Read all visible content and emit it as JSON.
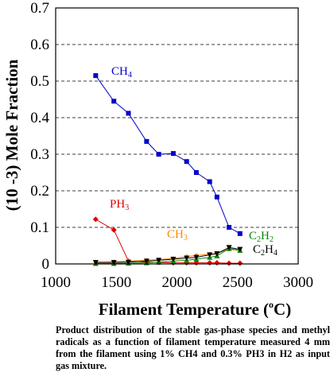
{
  "chart_data": {
    "type": "line",
    "xlabel_main": "Filament Temperature (",
    "xlabel_sup": "o",
    "xlabel_end": "C)",
    "ylabel": "(10 -3) Mole Fraction",
    "xlim": [
      1000,
      3000
    ],
    "ylim": [
      0,
      0.7
    ],
    "xticks": [
      1000,
      1500,
      2000,
      2500,
      3000
    ],
    "yticks": [
      0,
      0.1,
      0.2,
      0.3,
      0.4,
      0.5,
      0.6,
      0.7
    ],
    "ytick_labels": [
      "0",
      "0.1",
      "0.2",
      "0.3",
      "0.4",
      "0.5",
      "0.6",
      "0.7"
    ],
    "grid": "horizontal dashed",
    "series": [
      {
        "label_main": "CH",
        "label_sub": "4",
        "label_end": "",
        "color": "#0000cc",
        "marker": "square",
        "x": [
          1330,
          1480,
          1600,
          1750,
          1850,
          1970,
          2080,
          2160,
          2270,
          2330,
          2430,
          2520
        ],
        "y": [
          0.515,
          0.445,
          0.412,
          0.335,
          0.3,
          0.302,
          0.28,
          0.25,
          0.225,
          0.183,
          0.1,
          0.083
        ]
      },
      {
        "label_main": "PH",
        "label_sub": "3",
        "label_end": "",
        "color": "#dd0000",
        "marker": "diamond",
        "x": [
          1330,
          1480,
          1600,
          1750,
          1850,
          1970,
          2080,
          2160,
          2270,
          2330,
          2430,
          2520
        ],
        "y": [
          0.122,
          0.093,
          0.008,
          0.005,
          0.004,
          0.003,
          0.003,
          0.003,
          0.003,
          0.003,
          0.002,
          0.002
        ]
      },
      {
        "label_main": "CH",
        "label_sub": "3",
        "label_end": "",
        "color": "#ff8800",
        "marker": "circle",
        "x": [
          1330,
          1480,
          1600,
          1750,
          1850,
          1970,
          2080,
          2160,
          2270,
          2330,
          2430,
          2520
        ],
        "y": [
          0.005,
          0.006,
          0.008,
          0.01,
          0.012,
          0.015,
          0.02,
          0.023,
          0.027,
          0.03,
          0.04,
          0.037
        ]
      },
      {
        "label_main": "C",
        "label_sub": "2",
        "label_end": "H",
        "label_sub2": "2",
        "color": "#008800",
        "marker": "triangle",
        "x": [
          1330,
          1480,
          1600,
          1750,
          1850,
          1970,
          2080,
          2160,
          2270,
          2330,
          2430,
          2520
        ],
        "y": [
          0.001,
          0.001,
          0.002,
          0.003,
          0.005,
          0.008,
          0.01,
          0.013,
          0.018,
          0.022,
          0.042,
          0.037
        ]
      },
      {
        "label_main": "C",
        "label_sub": "2",
        "label_end": "H",
        "label_sub2": "4",
        "color": "#000000",
        "marker": "triangle-down",
        "x": [
          1330,
          1480,
          1600,
          1750,
          1850,
          1970,
          2080,
          2160,
          2270,
          2330,
          2430,
          2520
        ],
        "y": [
          0.004,
          0.004,
          0.005,
          0.008,
          0.01,
          0.013,
          0.016,
          0.018,
          0.025,
          0.028,
          0.045,
          0.04
        ]
      }
    ]
  },
  "caption": "Product distribution of the stable gas-phase species and methyl radicals as a function of filament temperature measured 4 mm from the filament using 1% CH4 and 0.3% PH3 in H2 as input gas mixture."
}
